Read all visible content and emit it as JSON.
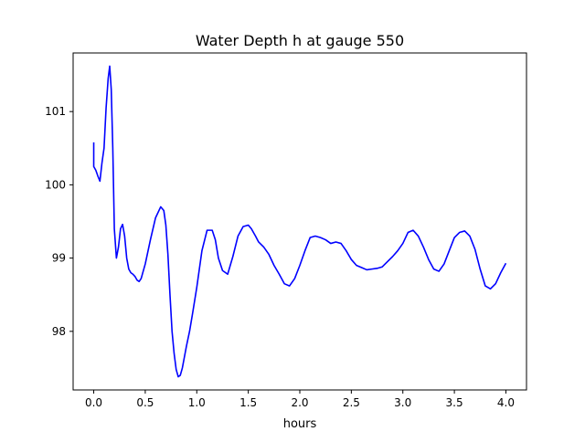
{
  "chart_data": {
    "type": "line",
    "title": "Water Depth h at gauge 550",
    "xlabel": "hours",
    "ylabel": "",
    "xlim": [
      -0.2,
      4.2
    ],
    "ylim": [
      97.2,
      101.8
    ],
    "xticks": [
      0.0,
      0.5,
      1.0,
      1.5,
      2.0,
      2.5,
      3.0,
      3.5,
      4.0
    ],
    "xtick_labels": [
      "0.0",
      "0.5",
      "1.0",
      "1.5",
      "2.0",
      "2.5",
      "3.0",
      "3.5",
      "4.0"
    ],
    "yticks": [
      98,
      99,
      100,
      101
    ],
    "ytick_labels": [
      "98",
      "99",
      "100",
      "101"
    ],
    "grid": false,
    "series": [
      {
        "color": "#0000ff",
        "x": [
          0.0,
          0.0,
          0.02,
          0.04,
          0.06,
          0.08,
          0.1,
          0.12,
          0.14,
          0.155,
          0.17,
          0.185,
          0.2,
          0.22,
          0.24,
          0.26,
          0.28,
          0.3,
          0.32,
          0.34,
          0.36,
          0.38,
          0.4,
          0.42,
          0.44,
          0.46,
          0.48,
          0.5,
          0.55,
          0.6,
          0.65,
          0.68,
          0.7,
          0.72,
          0.74,
          0.76,
          0.78,
          0.8,
          0.82,
          0.84,
          0.86,
          0.88,
          0.9,
          0.93,
          0.96,
          1.0,
          1.05,
          1.1,
          1.15,
          1.18,
          1.21,
          1.25,
          1.3,
          1.35,
          1.4,
          1.45,
          1.5,
          1.53,
          1.57,
          1.6,
          1.65,
          1.7,
          1.75,
          1.8,
          1.85,
          1.9,
          1.95,
          2.0,
          2.05,
          2.1,
          2.15,
          2.2,
          2.25,
          2.3,
          2.35,
          2.4,
          2.45,
          2.5,
          2.55,
          2.6,
          2.65,
          2.7,
          2.75,
          2.8,
          2.85,
          2.9,
          2.95,
          3.0,
          3.05,
          3.1,
          3.15,
          3.2,
          3.25,
          3.3,
          3.35,
          3.4,
          3.45,
          3.5,
          3.55,
          3.6,
          3.65,
          3.7,
          3.75,
          3.8,
          3.85,
          3.9,
          3.95,
          4.0
        ],
        "values": [
          100.58,
          100.25,
          100.2,
          100.12,
          100.05,
          100.3,
          100.5,
          101.05,
          101.45,
          101.62,
          101.3,
          100.5,
          99.4,
          99.0,
          99.15,
          99.4,
          99.46,
          99.3,
          99.0,
          98.85,
          98.8,
          98.78,
          98.75,
          98.7,
          98.68,
          98.72,
          98.82,
          98.92,
          99.25,
          99.55,
          99.7,
          99.65,
          99.45,
          99.05,
          98.5,
          98.0,
          97.7,
          97.48,
          97.38,
          97.4,
          97.5,
          97.65,
          97.8,
          98.0,
          98.25,
          98.6,
          99.1,
          99.38,
          99.38,
          99.25,
          99.0,
          98.83,
          98.78,
          99.02,
          99.3,
          99.43,
          99.45,
          99.4,
          99.3,
          99.22,
          99.15,
          99.05,
          98.9,
          98.78,
          98.65,
          98.62,
          98.72,
          98.9,
          99.1,
          99.28,
          99.3,
          99.28,
          99.25,
          99.2,
          99.22,
          99.2,
          99.1,
          98.98,
          98.9,
          98.87,
          98.84,
          98.85,
          98.86,
          98.88,
          98.95,
          99.02,
          99.1,
          99.2,
          99.35,
          99.38,
          99.3,
          99.15,
          98.98,
          98.85,
          98.82,
          98.92,
          99.1,
          99.28,
          99.35,
          99.37,
          99.3,
          99.12,
          98.85,
          98.62,
          98.58,
          98.65,
          98.8,
          98.93
        ]
      }
    ]
  }
}
